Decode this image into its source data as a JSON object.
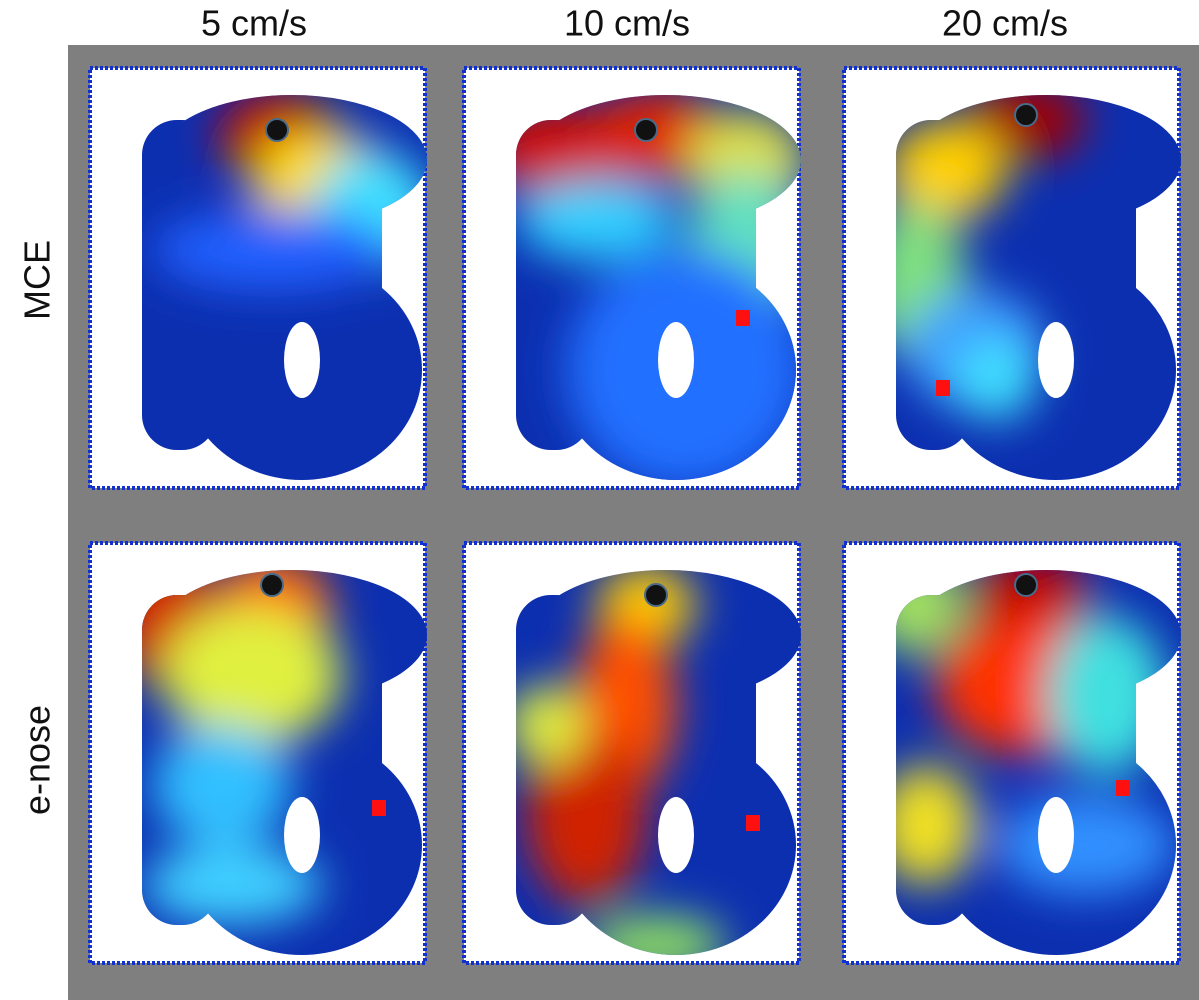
{
  "columns": [
    "5 cm/s",
    "10 cm/s",
    "20 cm/s"
  ],
  "rows": [
    "MCE",
    "e-nose"
  ]
}
